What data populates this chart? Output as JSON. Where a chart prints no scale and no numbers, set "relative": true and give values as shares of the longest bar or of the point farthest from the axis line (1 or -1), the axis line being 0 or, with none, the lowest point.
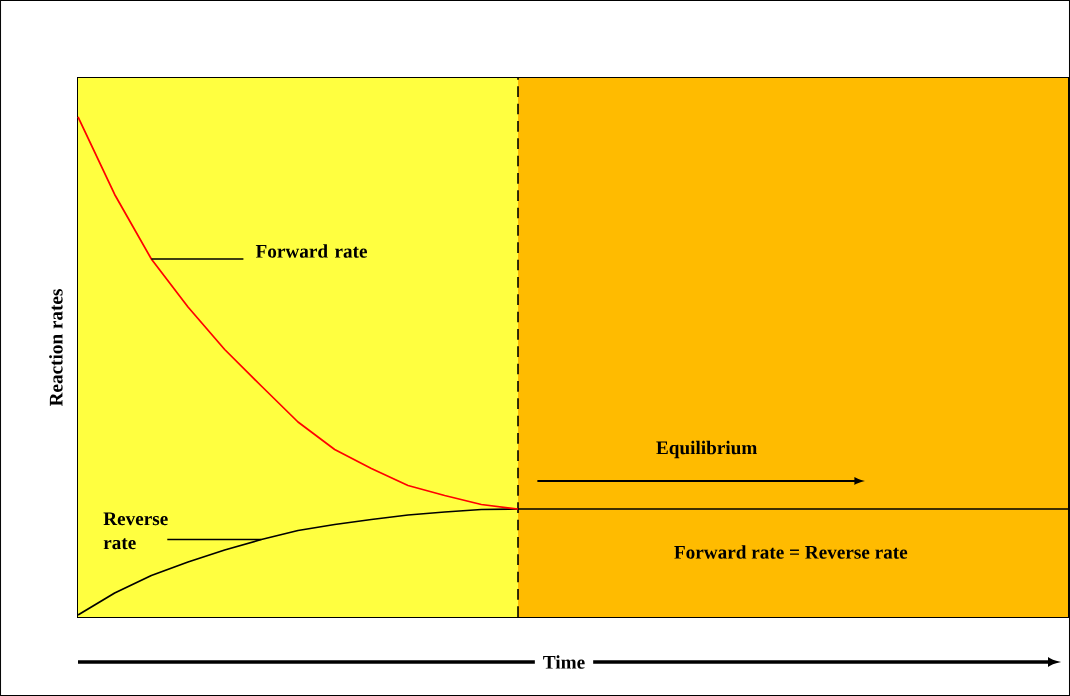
{
  "chart_data": {
    "type": "line",
    "relative": true,
    "xlabel": "Time",
    "ylabel": "Reaction rates",
    "tick_labels": false,
    "marker": "none",
    "categories": [
      null,
      null,
      null,
      null,
      null,
      null,
      null,
      null,
      null,
      null,
      null,
      null,
      null,
      null,
      null,
      null,
      null,
      null,
      null,
      null,
      null,
      null,
      null,
      null,
      null,
      null,
      null,
      null
    ],
    "series": [
      {
        "color": "#ff0000",
        "values": [
          1.0,
          0.845,
          0.716,
          0.62,
          0.535,
          0.462,
          0.39,
          0.335,
          0.297,
          0.263,
          0.243,
          0.225,
          0.216,
          null,
          null,
          null,
          null,
          null,
          null,
          null,
          null,
          null,
          null,
          null,
          null,
          null,
          null,
          null
        ]
      },
      {
        "color": "#000000",
        "values": [
          0.004,
          0.048,
          0.083,
          0.11,
          0.134,
          0.155,
          0.173,
          0.185,
          0.195,
          0.204,
          0.21,
          0.215,
          0.216,
          0.216,
          0.216,
          0.216,
          0.216,
          0.216,
          0.216,
          0.216,
          0.216,
          0.216,
          0.216,
          0.216,
          0.216,
          0.216,
          0.216,
          0.216
        ]
      }
    ],
    "annotations": [
      "Forward rate",
      "Reverse rate",
      "Equilibrium",
      "Forward rate = Reverse rate"
    ]
  }
}
